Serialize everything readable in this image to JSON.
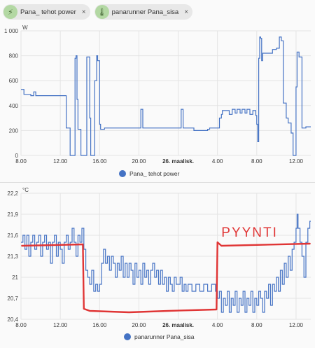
{
  "filters": [
    {
      "label": "Pana_ tehot power",
      "icon": "lightning-icon",
      "close": "×"
    },
    {
      "label": "panarunner Pana_sisa",
      "icon": "thermometer-icon",
      "close": "×"
    }
  ],
  "colors": {
    "series": "#4472c4",
    "annotation": "#e03535",
    "grid": "#e4e4e4"
  },
  "annotation_text": "PYYNTI",
  "chart_data": [
    {
      "type": "line",
      "unit": "W",
      "title": "",
      "ylim": [
        0,
        1000
      ],
      "yticks": [
        "0",
        "200",
        "400",
        "600",
        "800",
        "1 000"
      ],
      "xticks": [
        {
          "t": 8,
          "label": "8.00",
          "bold": false
        },
        {
          "t": 12,
          "label": "12.00",
          "bold": false
        },
        {
          "t": 16,
          "label": "16.00",
          "bold": false
        },
        {
          "t": 20,
          "label": "20.00",
          "bold": false
        },
        {
          "t": 24,
          "label": "26. maalisk.",
          "bold": true
        },
        {
          "t": 28,
          "label": "4.00",
          "bold": false
        },
        {
          "t": 32,
          "label": "8.00",
          "bold": false
        },
        {
          "t": 36,
          "label": "12.00",
          "bold": false
        }
      ],
      "xlim": [
        8,
        37.5
      ],
      "grid": true,
      "legend": "bottom",
      "series": [
        {
          "name": "Pana_ tehot power",
          "points": [
            [
              8,
              530
            ],
            [
              8.3,
              490
            ],
            [
              9,
              480
            ],
            [
              9.3,
              510
            ],
            [
              9.5,
              480
            ],
            [
              11,
              480
            ],
            [
              12.5,
              480
            ],
            [
              12.6,
              220
            ],
            [
              12.9,
              220
            ],
            [
              13,
              0
            ],
            [
              13.4,
              0
            ],
            [
              13.5,
              780
            ],
            [
              13.6,
              800
            ],
            [
              13.7,
              450
            ],
            [
              13.8,
              210
            ],
            [
              14,
              210
            ],
            [
              14.1,
              0
            ],
            [
              14.6,
              0
            ],
            [
              14.7,
              790
            ],
            [
              14.9,
              790
            ],
            [
              15,
              300
            ],
            [
              15.1,
              0
            ],
            [
              15.4,
              0
            ],
            [
              15.5,
              600
            ],
            [
              15.7,
              800
            ],
            [
              15.8,
              760
            ],
            [
              16,
              250
            ],
            [
              16.1,
              210
            ],
            [
              16.5,
              220
            ],
            [
              20,
              220
            ],
            [
              20.2,
              370
            ],
            [
              20.4,
              220
            ],
            [
              24,
              220
            ],
            [
              24.2,
              220
            ],
            [
              24.3,
              370
            ],
            [
              24.5,
              220
            ],
            [
              25.5,
              220
            ],
            [
              25.6,
              200
            ],
            [
              27,
              210
            ],
            [
              27.2,
              220
            ],
            [
              28,
              220
            ],
            [
              28.2,
              300
            ],
            [
              28.4,
              330
            ],
            [
              28.5,
              360
            ],
            [
              29,
              360
            ],
            [
              29.2,
              330
            ],
            [
              29.5,
              370
            ],
            [
              29.8,
              340
            ],
            [
              30,
              370
            ],
            [
              30.3,
              340
            ],
            [
              30.5,
              370
            ],
            [
              30.8,
              340
            ],
            [
              31,
              370
            ],
            [
              31.3,
              330
            ],
            [
              31.6,
              360
            ],
            [
              31.9,
              320
            ],
            [
              32,
              250
            ],
            [
              32.1,
              110
            ],
            [
              32.2,
              780
            ],
            [
              32.3,
              950
            ],
            [
              32.4,
              940
            ],
            [
              32.5,
              760
            ],
            [
              32.6,
              820
            ],
            [
              33.5,
              820
            ],
            [
              33.6,
              850
            ],
            [
              34,
              860
            ],
            [
              34.3,
              950
            ],
            [
              34.5,
              920
            ],
            [
              34.7,
              420
            ],
            [
              35,
              300
            ],
            [
              35.2,
              260
            ],
            [
              35.5,
              180
            ],
            [
              35.7,
              0
            ],
            [
              35.9,
              0
            ],
            [
              36,
              550
            ],
            [
              36.1,
              830
            ],
            [
              36.3,
              790
            ],
            [
              36.6,
              220
            ],
            [
              37,
              230
            ],
            [
              37.5,
              230
            ]
          ]
        }
      ]
    },
    {
      "type": "line",
      "unit": "°C",
      "title": "",
      "ylim": [
        20.4,
        22.2
      ],
      "yticks": [
        "20,4",
        "20,7",
        "21",
        "21,3",
        "21,6",
        "21,9",
        "22,2"
      ],
      "xticks": [
        {
          "t": 8,
          "label": "8.00",
          "bold": false
        },
        {
          "t": 12,
          "label": "12.00",
          "bold": false
        },
        {
          "t": 16,
          "label": "16.00",
          "bold": false
        },
        {
          "t": 20,
          "label": "20.00",
          "bold": false
        },
        {
          "t": 24,
          "label": "26. maalisk.",
          "bold": true
        },
        {
          "t": 28,
          "label": "4.00",
          "bold": false
        },
        {
          "t": 32,
          "label": "8.00",
          "bold": false
        },
        {
          "t": 36,
          "label": "12.00",
          "bold": false
        }
      ],
      "xlim": [
        8,
        37.5
      ],
      "grid": true,
      "legend": "bottom",
      "series": [
        {
          "name": "panarunner Pana_sisa",
          "points": [
            [
              8,
              21.5
            ],
            [
              8.2,
              21.6
            ],
            [
              8.4,
              21.4
            ],
            [
              8.6,
              21.6
            ],
            [
              8.8,
              21.3
            ],
            [
              9,
              21.5
            ],
            [
              9.2,
              21.6
            ],
            [
              9.4,
              21.4
            ],
            [
              9.6,
              21.5
            ],
            [
              9.8,
              21.6
            ],
            [
              10,
              21.3
            ],
            [
              10.2,
              21.5
            ],
            [
              10.4,
              21.6
            ],
            [
              10.6,
              21.4
            ],
            [
              10.8,
              21.5
            ],
            [
              11,
              21.2
            ],
            [
              11.2,
              21.5
            ],
            [
              11.4,
              21.6
            ],
            [
              11.6,
              21.3
            ],
            [
              11.8,
              21.5
            ],
            [
              12,
              21.4
            ],
            [
              12.2,
              21.2
            ],
            [
              12.4,
              21.5
            ],
            [
              12.6,
              21.6
            ],
            [
              12.8,
              21.4
            ],
            [
              13,
              21.5
            ],
            [
              13.2,
              21.7
            ],
            [
              13.4,
              21.5
            ],
            [
              13.6,
              21.3
            ],
            [
              13.8,
              21.6
            ],
            [
              14,
              21.5
            ],
            [
              14.2,
              21.7
            ],
            [
              14.4,
              21.4
            ],
            [
              14.6,
              21.1
            ],
            [
              14.8,
              21.0
            ],
            [
              15,
              20.9
            ],
            [
              15.2,
              21.1
            ],
            [
              15.4,
              20.8
            ],
            [
              15.6,
              20.9
            ],
            [
              15.8,
              20.8
            ],
            [
              16,
              20.9
            ],
            [
              16.2,
              21.2
            ],
            [
              16.4,
              21.4
            ],
            [
              16.6,
              21.2
            ],
            [
              16.8,
              21.3
            ],
            [
              17,
              21.1
            ],
            [
              17.2,
              21.3
            ],
            [
              17.4,
              21.2
            ],
            [
              17.6,
              21.0
            ],
            [
              17.8,
              21.2
            ],
            [
              18,
              21.1
            ],
            [
              18.2,
              21.3
            ],
            [
              18.4,
              21.0
            ],
            [
              18.6,
              21.2
            ],
            [
              18.8,
              21.0
            ],
            [
              19,
              21.2
            ],
            [
              19.2,
              21.1
            ],
            [
              19.4,
              20.9
            ],
            [
              19.6,
              21.2
            ],
            [
              19.8,
              21.0
            ],
            [
              20,
              21.1
            ],
            [
              20.2,
              20.9
            ],
            [
              20.4,
              21.2
            ],
            [
              20.6,
              21.0
            ],
            [
              20.8,
              21.1
            ],
            [
              21,
              20.9
            ],
            [
              21.2,
              21.1
            ],
            [
              21.4,
              21.2
            ],
            [
              21.6,
              21.0
            ],
            [
              21.8,
              21.1
            ],
            [
              22,
              20.9
            ],
            [
              22.2,
              21.1
            ],
            [
              22.4,
              20.9
            ],
            [
              22.6,
              21.0
            ],
            [
              22.8,
              20.8
            ],
            [
              23,
              21.0
            ],
            [
              23.2,
              20.9
            ],
            [
              23.4,
              20.8
            ],
            [
              23.6,
              21.0
            ],
            [
              23.8,
              20.9
            ],
            [
              24,
              20.9
            ],
            [
              24.2,
              21.0
            ],
            [
              24.4,
              20.8
            ],
            [
              24.6,
              20.9
            ],
            [
              24.8,
              20.8
            ],
            [
              25,
              20.9
            ],
            [
              25.4,
              20.8
            ],
            [
              25.8,
              20.9
            ],
            [
              26.2,
              20.8
            ],
            [
              26.6,
              20.9
            ],
            [
              27,
              20.8
            ],
            [
              27.4,
              20.9
            ],
            [
              27.8,
              20.8
            ],
            [
              28,
              20.7
            ],
            [
              28.2,
              20.8
            ],
            [
              28.4,
              20.5
            ],
            [
              28.6,
              20.7
            ],
            [
              28.8,
              20.6
            ],
            [
              29,
              20.8
            ],
            [
              29.2,
              20.5
            ],
            [
              29.4,
              20.7
            ],
            [
              29.6,
              20.6
            ],
            [
              29.8,
              20.8
            ],
            [
              30,
              20.5
            ],
            [
              30.2,
              20.7
            ],
            [
              30.4,
              20.6
            ],
            [
              30.6,
              20.8
            ],
            [
              30.8,
              20.5
            ],
            [
              31,
              20.7
            ],
            [
              31.2,
              20.6
            ],
            [
              31.4,
              20.8
            ],
            [
              31.6,
              20.5
            ],
            [
              31.8,
              20.7
            ],
            [
              32,
              20.6
            ],
            [
              32.2,
              20.8
            ],
            [
              32.4,
              20.7
            ],
            [
              32.6,
              20.5
            ],
            [
              32.8,
              20.8
            ],
            [
              33,
              20.7
            ],
            [
              33.2,
              20.9
            ],
            [
              33.4,
              20.6
            ],
            [
              33.6,
              20.9
            ],
            [
              33.8,
              20.8
            ],
            [
              34,
              21.0
            ],
            [
              34.2,
              20.8
            ],
            [
              34.4,
              21.1
            ],
            [
              34.6,
              20.9
            ],
            [
              34.8,
              21.2
            ],
            [
              35,
              21.0
            ],
            [
              35.2,
              21.3
            ],
            [
              35.4,
              21.1
            ],
            [
              35.6,
              21.4
            ],
            [
              35.8,
              21.5
            ],
            [
              36,
              21.7
            ],
            [
              36.1,
              21.9
            ],
            [
              36.2,
              21.7
            ],
            [
              36.4,
              21.5
            ],
            [
              36.6,
              21.3
            ],
            [
              36.8,
              21.0
            ],
            [
              37,
              21.5
            ],
            [
              37.2,
              21.7
            ],
            [
              37.4,
              21.8
            ],
            [
              37.5,
              21.8
            ]
          ]
        }
      ],
      "annotation_curve": [
        [
          8.1,
          21.45
        ],
        [
          14.3,
          21.47
        ],
        [
          14.4,
          20.55
        ],
        [
          15,
          20.52
        ],
        [
          19,
          20.5
        ],
        [
          23,
          20.52
        ],
        [
          27.9,
          20.54
        ],
        [
          28,
          21.5
        ],
        [
          28.4,
          21.45
        ],
        [
          37.4,
          21.48
        ]
      ]
    }
  ]
}
